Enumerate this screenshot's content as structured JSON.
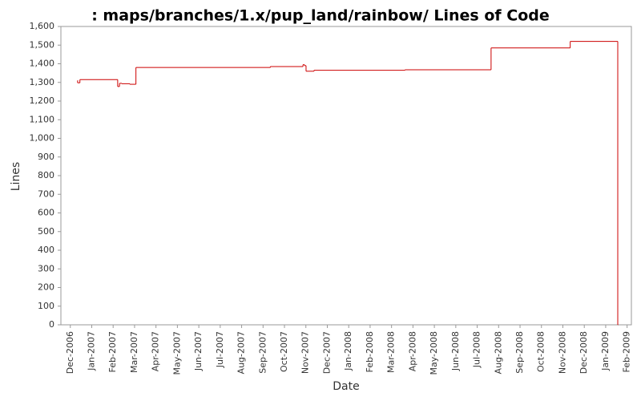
{
  "chart_data": {
    "type": "step",
    "title": ": maps/branches/1.x/pup_land/rainbow/ Lines of Code",
    "xlabel": "Date",
    "ylabel": "Lines",
    "series": [
      {
        "name": "Lines",
        "color": "#cc0000",
        "x": [
          2006.945,
          2006.945,
          2006.954,
          2007.101,
          2007.108,
          2007.117,
          2007.148,
          2007.172,
          2007.695,
          2007.822,
          2007.828,
          2007.834,
          2007.865,
          2008.219,
          2008.554,
          2008.862,
          2009.047
        ],
        "values": [
          1310,
          1298,
          1315,
          1278,
          1295,
          1293,
          1290,
          1380,
          1385,
          1395,
          1390,
          1360,
          1365,
          1368,
          1485,
          1520,
          0
        ]
      }
    ],
    "xlim": [
      2006.88,
      2009.1
    ],
    "xticks": [
      {
        "value": 2006.9167,
        "label": "Dec-2006"
      },
      {
        "value": 2007.0,
        "label": "Jan-2007"
      },
      {
        "value": 2007.0833,
        "label": "Feb-2007"
      },
      {
        "value": 2007.1667,
        "label": "Mar-2007"
      },
      {
        "value": 2007.25,
        "label": "Apr-2007"
      },
      {
        "value": 2007.3333,
        "label": "May-2007"
      },
      {
        "value": 2007.4167,
        "label": "Jun-2007"
      },
      {
        "value": 2007.5,
        "label": "Jul-2007"
      },
      {
        "value": 2007.5833,
        "label": "Aug-2007"
      },
      {
        "value": 2007.6667,
        "label": "Sep-2007"
      },
      {
        "value": 2007.75,
        "label": "Oct-2007"
      },
      {
        "value": 2007.8333,
        "label": "Nov-2007"
      },
      {
        "value": 2007.9167,
        "label": "Dec-2007"
      },
      {
        "value": 2008.0,
        "label": "Jan-2008"
      },
      {
        "value": 2008.0833,
        "label": "Feb-2008"
      },
      {
        "value": 2008.1667,
        "label": "Mar-2008"
      },
      {
        "value": 2008.25,
        "label": "Apr-2008"
      },
      {
        "value": 2008.3333,
        "label": "May-2008"
      },
      {
        "value": 2008.4167,
        "label": "Jun-2008"
      },
      {
        "value": 2008.5,
        "label": "Jul-2008"
      },
      {
        "value": 2008.5833,
        "label": "Aug-2008"
      },
      {
        "value": 2008.6667,
        "label": "Sep-2008"
      },
      {
        "value": 2008.75,
        "label": "Oct-2008"
      },
      {
        "value": 2008.8333,
        "label": "Nov-2008"
      },
      {
        "value": 2008.9167,
        "label": "Dec-2008"
      },
      {
        "value": 2009.0,
        "label": "Jan-2009"
      },
      {
        "value": 2009.0833,
        "label": "Feb-2009"
      }
    ],
    "ylim": [
      0,
      1600
    ],
    "yticks": [
      0,
      100,
      200,
      300,
      400,
      500,
      600,
      700,
      800,
      900,
      {
        "value": 1000,
        "label": "1,000"
      },
      {
        "value": 1100,
        "label": "1,100"
      },
      {
        "value": 1200,
        "label": "1,200"
      },
      {
        "value": 1300,
        "label": "1,300"
      },
      {
        "value": 1400,
        "label": "1,400"
      },
      {
        "value": 1500,
        "label": "1,500"
      },
      {
        "value": 1600,
        "label": "1,600"
      }
    ],
    "grid": false
  }
}
